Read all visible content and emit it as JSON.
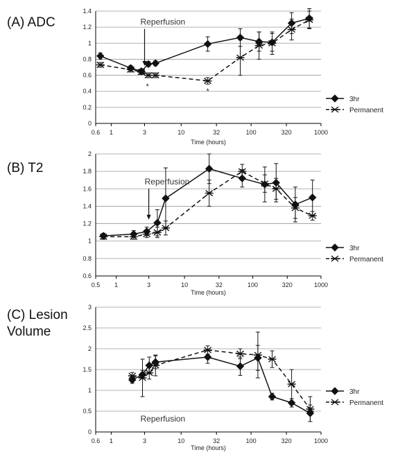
{
  "chart_data": [
    {
      "type": "line",
      "title": "(A) ADC",
      "title_lines": [
        "(A) ADC"
      ],
      "xlabel": "Time (hours)",
      "ylabel": "",
      "x_scale": "log",
      "xlim": [
        0.6,
        1000
      ],
      "ylim": [
        0,
        1.4
      ],
      "x_ticks": [
        0.6,
        1,
        3,
        10,
        32,
        100,
        320,
        1000
      ],
      "x_tick_labels": [
        "0.6",
        "1",
        "3",
        "10",
        "32",
        "100",
        "320",
        "1000"
      ],
      "y_ticks": [
        0,
        0.2,
        0.4,
        0.6,
        0.8,
        1,
        1.2,
        1.4
      ],
      "y_tick_labels": [
        "0",
        "0.2",
        "0.4",
        "0.6",
        "0.8",
        "1",
        "1.2",
        "1.4"
      ],
      "grid": "horizontal",
      "legend_position": "right",
      "annotations": [
        {
          "text": "Reperfusion",
          "x": 3,
          "y": 1.23,
          "arrow_to": 0.7
        },
        {
          "text": "*",
          "x": 3.3,
          "y": 0.43
        },
        {
          "text": "*",
          "x": 24,
          "y": 0.37
        }
      ],
      "series": [
        {
          "name": "3hr",
          "marker": "diamond",
          "line": "solid",
          "x": [
            0.7,
            1.9,
            2.7,
            3.4,
            4.3,
            24,
            70,
            130,
            200,
            380,
            680
          ],
          "y": [
            0.84,
            0.69,
            0.65,
            0.74,
            0.75,
            0.99,
            1.07,
            1.02,
            1.01,
            1.25,
            1.31
          ],
          "err": [
            0.04,
            0.03,
            0.03,
            0.03,
            0.03,
            0.09,
            0.11,
            0.12,
            0.11,
            0.13,
            0.12
          ]
        },
        {
          "name": "Permanent",
          "marker": "star",
          "line": "dashed",
          "x": [
            0.7,
            1.9,
            2.7,
            3.4,
            4.3,
            24,
            70,
            130,
            200,
            380,
            680
          ],
          "y": [
            0.73,
            0.67,
            0.64,
            0.6,
            0.6,
            0.53,
            0.82,
            0.97,
            1.0,
            1.17,
            1.29
          ],
          "err": [
            0.03,
            0.03,
            0.03,
            0.03,
            0.03,
            0.04,
            0.22,
            0.17,
            0.14,
            0.13,
            0.11
          ]
        }
      ]
    },
    {
      "type": "line",
      "title": "(B) T2",
      "title_lines": [
        "(B) T2"
      ],
      "xlabel": "Time (hours)",
      "ylabel": "",
      "x_scale": "log",
      "xlim": [
        0.5,
        1000
      ],
      "ylim": [
        0.6,
        2.0
      ],
      "x_ticks": [
        0.5,
        1,
        3,
        10,
        32,
        100,
        320,
        1000
      ],
      "x_tick_labels": [
        "0.5",
        "1",
        "3",
        "10",
        "32",
        "100",
        "320",
        "1000"
      ],
      "y_ticks": [
        0.6,
        0.8,
        1.0,
        1.2,
        1.4,
        1.6,
        1.8,
        2.0
      ],
      "y_tick_labels": [
        "0.6",
        "0.8",
        "1",
        "1.2",
        "1.4",
        "1.6",
        "1.8",
        "2"
      ],
      "grid": "horizontal",
      "legend_position": "right",
      "annotations": [
        {
          "text": "Reperfusion",
          "x": 3,
          "y": 1.65,
          "arrow_to": 1.23
        }
      ],
      "series": [
        {
          "name": "3hr",
          "marker": "diamond",
          "line": "solid",
          "x": [
            0.65,
            1.8,
            2.8,
            4.0,
            5.3,
            23,
            70,
            150,
            220,
            420,
            750
          ],
          "y": [
            1.06,
            1.08,
            1.11,
            1.21,
            1.49,
            1.83,
            1.72,
            1.65,
            1.67,
            1.42,
            1.5
          ],
          "err": [
            0.03,
            0.04,
            0.05,
            0.15,
            0.35,
            0.17,
            0.1,
            0.2,
            0.22,
            0.2,
            0.2
          ]
        },
        {
          "name": "Permanent",
          "marker": "star",
          "line": "dashed",
          "x": [
            0.65,
            1.8,
            2.8,
            4.0,
            5.3,
            23,
            70,
            150,
            220,
            420,
            750
          ],
          "y": [
            1.05,
            1.05,
            1.08,
            1.1,
            1.15,
            1.55,
            1.8,
            1.66,
            1.6,
            1.38,
            1.29
          ],
          "err": [
            0.03,
            0.03,
            0.04,
            0.06,
            0.08,
            0.15,
            0.08,
            0.1,
            0.12,
            0.12,
            0.05
          ]
        }
      ]
    },
    {
      "type": "line",
      "title": "(C) Lesion Volume",
      "title_lines": [
        "(C) Lesion",
        "Volume"
      ],
      "xlabel": "Time (hours)",
      "ylabel": "",
      "x_scale": "log",
      "xlim": [
        0.6,
        1000
      ],
      "ylim": [
        0,
        3
      ],
      "x_ticks": [
        0.6,
        1,
        3,
        10,
        32,
        100,
        320,
        1000
      ],
      "x_tick_labels": [
        "0.6",
        "1",
        "3",
        "10",
        "32",
        "100",
        "320",
        "1000"
      ],
      "y_ticks": [
        0,
        0.5,
        1,
        1.5,
        2,
        2.5,
        3
      ],
      "y_tick_labels": [
        "0",
        "0.5",
        "1",
        "1.5",
        "2",
        "2.5",
        "3"
      ],
      "grid": "horizontal",
      "legend_position": "right",
      "annotations": [
        {
          "text": "Reperfusion",
          "x": 3,
          "y": 0.25
        }
      ],
      "series": [
        {
          "name": "3hr",
          "marker": "diamond",
          "line": "solid",
          "x": [
            2.0,
            2.8,
            3.5,
            4.3,
            24,
            70,
            125,
            200,
            380,
            700
          ],
          "y": [
            1.25,
            1.38,
            1.6,
            1.68,
            1.8,
            1.58,
            1.78,
            0.85,
            0.7,
            0.45
          ],
          "err": [
            0.08,
            0.1,
            0.2,
            0.15,
            0.15,
            0.22,
            0.3,
            0.08,
            0.1,
            0.2
          ]
        },
        {
          "name": "Permanent",
          "marker": "star",
          "line": "dashed",
          "x": [
            2.0,
            2.8,
            3.5,
            4.3,
            24,
            70,
            125,
            200,
            380,
            700
          ],
          "y": [
            1.35,
            1.3,
            1.42,
            1.6,
            1.97,
            1.88,
            1.85,
            1.75,
            1.15,
            0.55
          ],
          "err": [
            0.08,
            0.45,
            0.15,
            0.25,
            0.1,
            0.12,
            0.55,
            0.2,
            0.35,
            0.3
          ]
        }
      ]
    }
  ]
}
